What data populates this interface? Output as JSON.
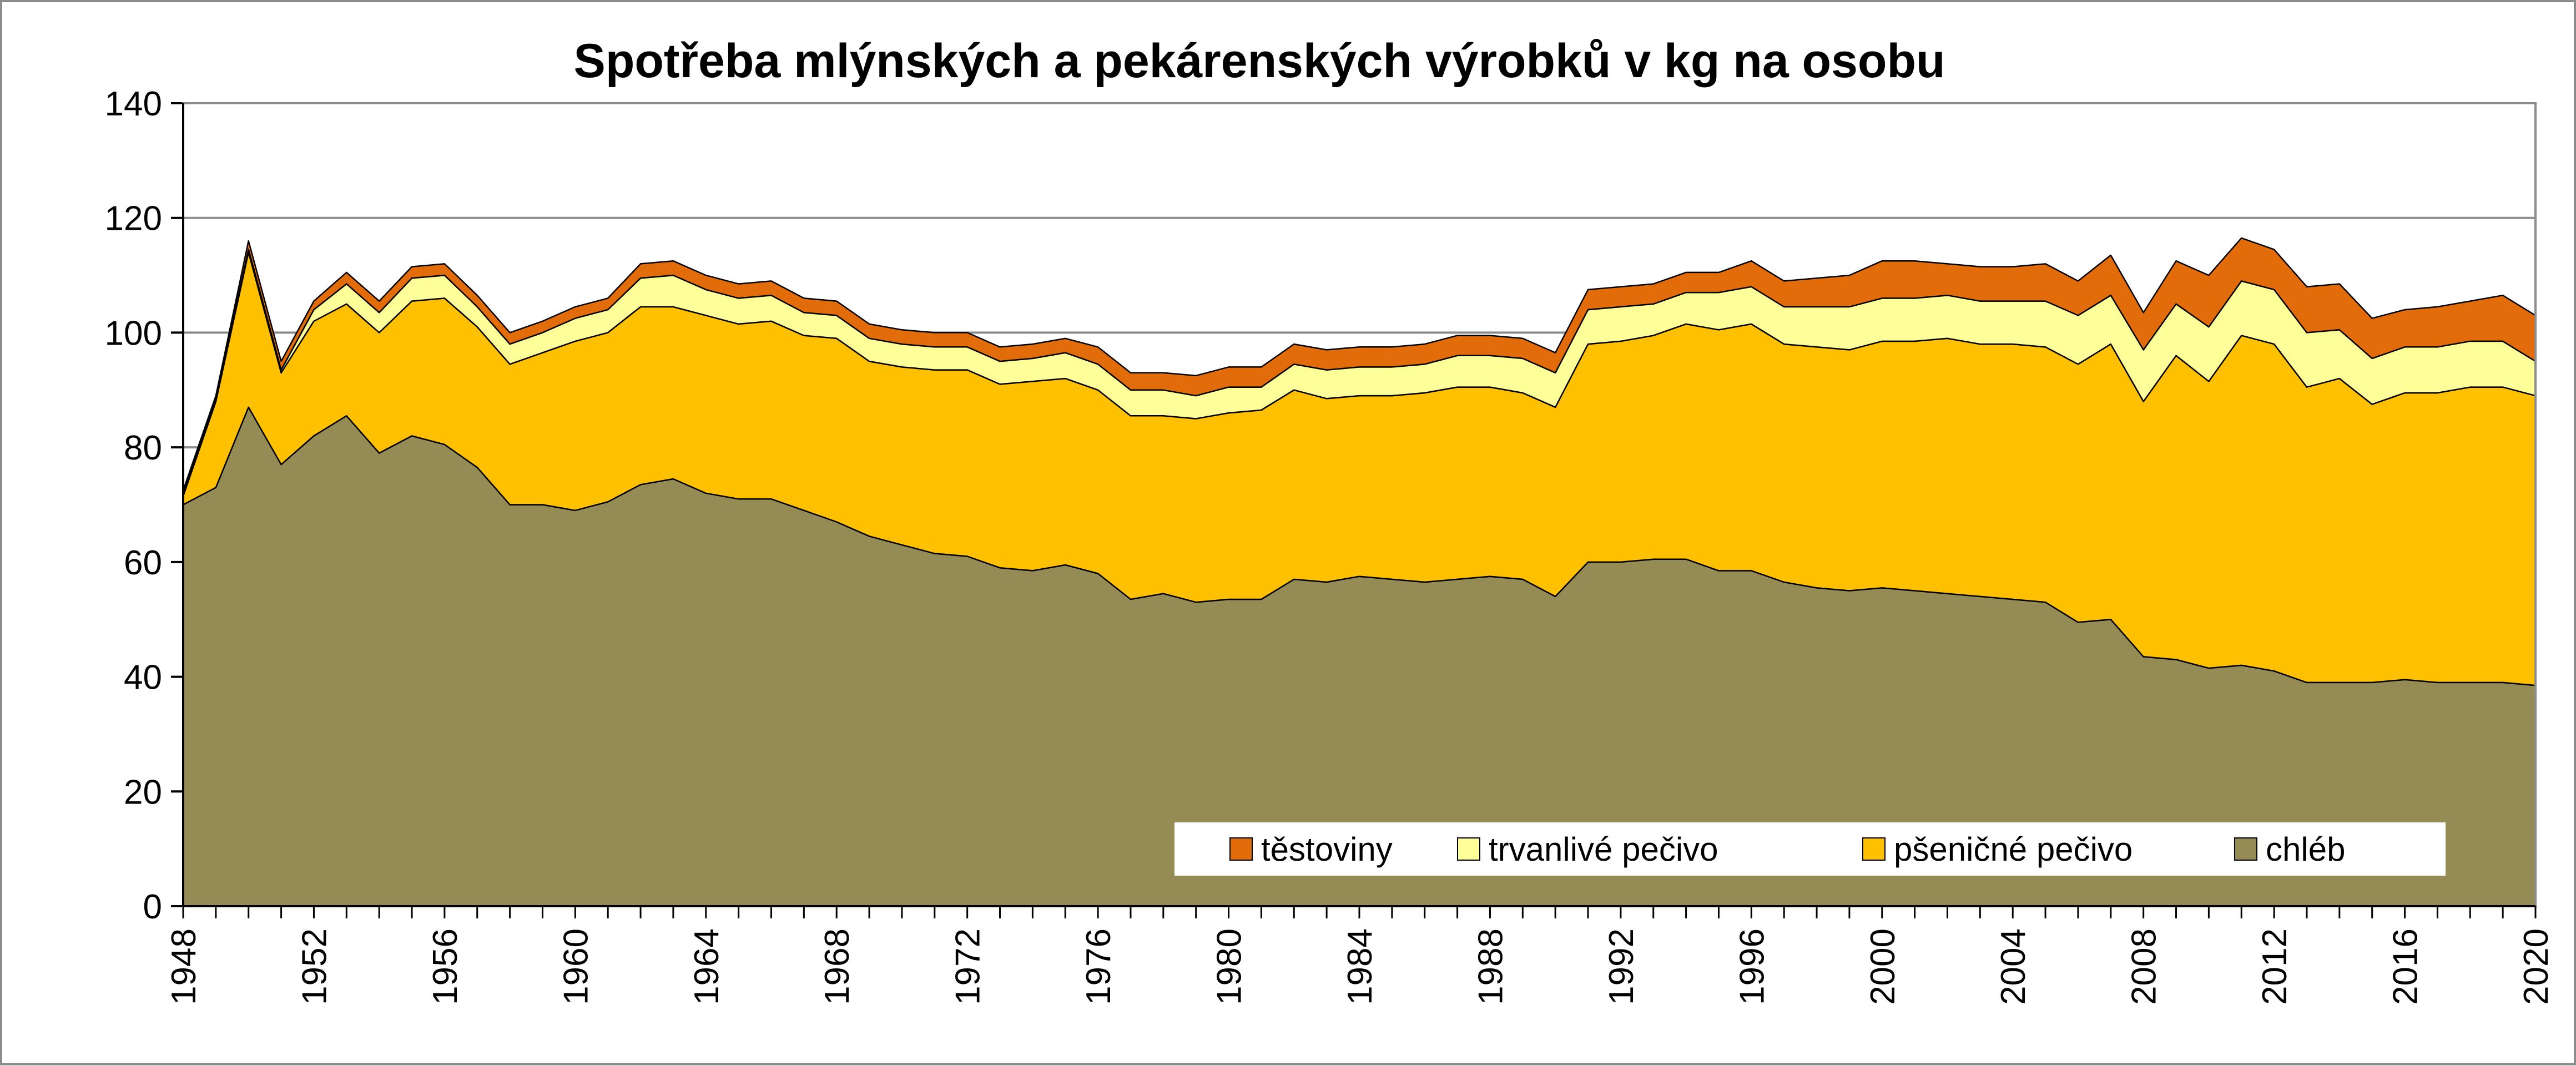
{
  "chart_data": {
    "type": "area",
    "stacked": true,
    "title": "Spotřeba mlýnských  a pekárenských  výrobků  v  kg na osobu",
    "xlabel": "",
    "ylabel": "",
    "ylim": [
      0,
      140
    ],
    "y_ticks": [
      "0",
      "20",
      "40",
      "60",
      "80",
      "100",
      "120",
      "140"
    ],
    "x_ticks": [
      "1948",
      "1952",
      "1956",
      "1960",
      "1964",
      "1968",
      "1972",
      "1976",
      "1980",
      "1984",
      "1988",
      "1992",
      "1996",
      "2000",
      "2004",
      "2008",
      "2012",
      "2016",
      "2020"
    ],
    "grid": "horizontal",
    "legend_position": "bottom-right",
    "x": [
      1948,
      1949,
      1950,
      1951,
      1952,
      1953,
      1954,
      1955,
      1956,
      1957,
      1958,
      1959,
      1960,
      1961,
      1962,
      1963,
      1964,
      1965,
      1966,
      1967,
      1968,
      1969,
      1970,
      1971,
      1972,
      1973,
      1974,
      1975,
      1976,
      1977,
      1978,
      1979,
      1980,
      1981,
      1982,
      1983,
      1984,
      1985,
      1986,
      1987,
      1988,
      1989,
      1990,
      1991,
      1992,
      1993,
      1994,
      1995,
      1996,
      1997,
      1998,
      1999,
      2000,
      2001,
      2002,
      2003,
      2004,
      2005,
      2006,
      2007,
      2008,
      2009,
      2010,
      2011,
      2012,
      2013,
      2014,
      2015,
      2016,
      2017,
      2018,
      2019,
      2020
    ],
    "series": [
      {
        "name": "chléb",
        "color": "#958b55",
        "values": [
          70,
          73,
          87,
          77,
          82,
          85.5,
          79,
          82,
          80.5,
          76.5,
          70,
          70,
          69,
          70.5,
          73.5,
          74.5,
          72,
          71,
          71,
          69,
          67,
          64.5,
          63,
          61.5,
          61,
          59,
          58.5,
          59.5,
          58,
          53.5,
          54.5,
          53,
          53.5,
          53.5,
          57,
          56.5,
          57.5,
          57,
          56.5,
          57,
          57.5,
          57,
          54,
          60,
          60,
          60.5,
          60.5,
          58.5,
          58.5,
          56.5,
          55.5,
          55,
          55.5,
          55,
          54.5,
          54,
          53.5,
          53,
          49.5,
          50,
          43.5,
          43,
          41.5,
          42,
          41,
          39,
          39,
          39,
          39.5,
          39,
          39,
          39,
          38.5
        ]
      },
      {
        "name": "pšeničné pečivo",
        "color": "#ffc000",
        "values": [
          1.5,
          15,
          27,
          16,
          20,
          19.5,
          21,
          23.5,
          25.5,
          24.5,
          24.5,
          26.5,
          29.5,
          29.5,
          31,
          30,
          31,
          30.5,
          31,
          30.5,
          32,
          30.5,
          31,
          32,
          32.5,
          32,
          33,
          32.5,
          32,
          32,
          31,
          32,
          32.5,
          33,
          33,
          32,
          31.5,
          32,
          33,
          33.5,
          33,
          32.5,
          33,
          38,
          38.5,
          39,
          41,
          42,
          43,
          41.5,
          42,
          42,
          43,
          43.5,
          44.5,
          44,
          44.5,
          44.5,
          45,
          48,
          44.5,
          53,
          50,
          57.5,
          57,
          51.5,
          53,
          48.5,
          50,
          50.5,
          51.5,
          51.5,
          50.5
        ]
      },
      {
        "name": "trvanlivé pečivo",
        "color": "#ffff99",
        "values": [
          0.5,
          0.5,
          0.5,
          0.5,
          2,
          3.5,
          3.5,
          4,
          4,
          3.5,
          3.5,
          3.5,
          4,
          4,
          5,
          5.5,
          4.5,
          4.5,
          4.5,
          4,
          4,
          4,
          4,
          4,
          4,
          4,
          4,
          4.5,
          4.5,
          4.5,
          4.5,
          4,
          4.5,
          4,
          4.5,
          5,
          5,
          5,
          5,
          5.5,
          5.5,
          6,
          6,
          6,
          6,
          5.5,
          5.5,
          6.5,
          6.5,
          6.5,
          7,
          7.5,
          7.5,
          7.5,
          7.5,
          7.5,
          7.5,
          8,
          8.5,
          8.5,
          9,
          9,
          9.5,
          9.5,
          9.5,
          9.5,
          8.5,
          8,
          8,
          8,
          8,
          8,
          6
        ]
      },
      {
        "name": "těstoviny",
        "color": "#e36c0a",
        "values": [
          0.5,
          0.5,
          1.5,
          1.5,
          1.5,
          2,
          2,
          2,
          2,
          2,
          2,
          2,
          2,
          2,
          2.5,
          2.5,
          2.5,
          2.5,
          2.5,
          2.5,
          2.5,
          2.5,
          2.5,
          2.5,
          2.5,
          2.5,
          2.5,
          2.5,
          3,
          3,
          3,
          3.5,
          3.5,
          3.5,
          3.5,
          3.5,
          3.5,
          3.5,
          3.5,
          3.5,
          3.5,
          3.5,
          3.5,
          3.5,
          3.5,
          3.5,
          3.5,
          3.5,
          4.5,
          4.5,
          5,
          5.5,
          6.5,
          6.5,
          5.5,
          6,
          6,
          6.5,
          6,
          7,
          6.5,
          7.5,
          9,
          7.5,
          7,
          8,
          8,
          7,
          6.5,
          7,
          7,
          8,
          8
        ]
      }
    ]
  }
}
